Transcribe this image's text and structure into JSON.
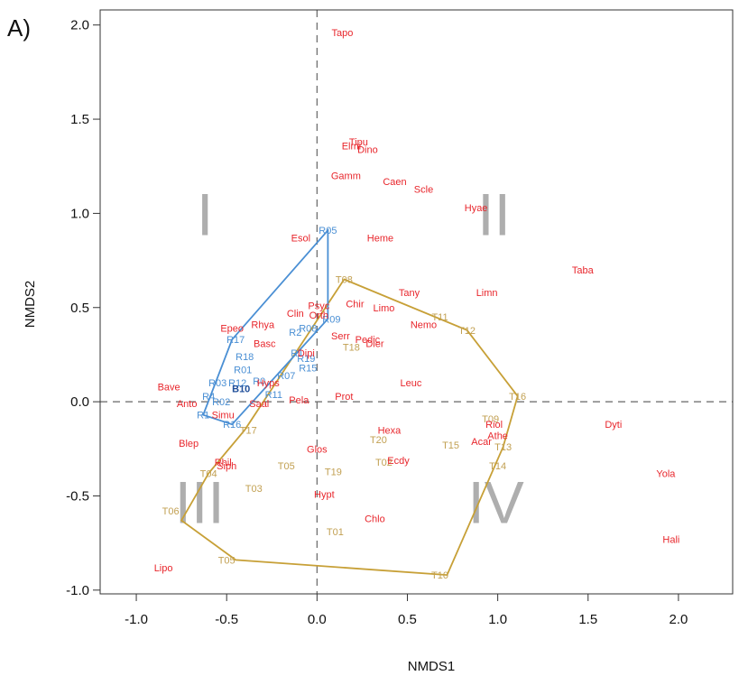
{
  "chart_data": {
    "type": "scatter",
    "panel_label": "A)",
    "xlabel": "NMDS1",
    "ylabel": "NMDS2",
    "xlim": [
      -1.2,
      2.3
    ],
    "ylim": [
      -1.02,
      2.08
    ],
    "x_ticks": [
      -1.0,
      -0.5,
      0.0,
      0.5,
      1.0,
      1.5,
      2.0
    ],
    "y_ticks": [
      -1.0,
      -0.5,
      0.0,
      0.5,
      1.0,
      1.5,
      2.0
    ],
    "x_tick_labels": [
      "-1.0",
      "-0.5",
      "0.0",
      "0.5",
      "1.0",
      "1.5",
      "2.0"
    ],
    "y_tick_labels": [
      "-1.0",
      "-0.5",
      "0.0",
      "0.5",
      "1.0",
      "1.5",
      "2.0"
    ],
    "reference_lines": {
      "x": 0.0,
      "y": 0.0,
      "style": "dashed"
    },
    "colors": {
      "taxa": "#e8262c",
      "river": "#4a8fd4",
      "river_bold": "#1f4e99",
      "temporary": "#c2a052",
      "hull_river": "#4a8fd4",
      "hull_temporary": "#c7a037",
      "quadrant": "#9a9a9a"
    },
    "quadrants": [
      {
        "label": "I",
        "x": -0.62,
        "y": 1.0
      },
      {
        "label": "II",
        "x": 0.98,
        "y": 1.0
      },
      {
        "label": "III",
        "x": -0.65,
        "y": -0.53
      },
      {
        "label": "IV",
        "x": 0.99,
        "y": -0.53
      }
    ],
    "taxa": [
      {
        "label": "Tapo",
        "x": 0.14,
        "y": 1.96
      },
      {
        "label": "Tipu",
        "x": 0.23,
        "y": 1.38
      },
      {
        "label": "Elmi",
        "x": 0.19,
        "y": 1.36
      },
      {
        "label": "Dino",
        "x": 0.28,
        "y": 1.34
      },
      {
        "label": "Gamm",
        "x": 0.16,
        "y": 1.2
      },
      {
        "label": "Caen",
        "x": 0.43,
        "y": 1.17
      },
      {
        "label": "Scle",
        "x": 0.59,
        "y": 1.13
      },
      {
        "label": "Hyae",
        "x": 0.88,
        "y": 1.03
      },
      {
        "label": "Esol",
        "x": -0.09,
        "y": 0.87
      },
      {
        "label": "Heme",
        "x": 0.35,
        "y": 0.87
      },
      {
        "label": "Taba",
        "x": 1.47,
        "y": 0.7
      },
      {
        "label": "Tany",
        "x": 0.51,
        "y": 0.58
      },
      {
        "label": "Limn",
        "x": 0.94,
        "y": 0.58
      },
      {
        "label": "Chir",
        "x": 0.21,
        "y": 0.52
      },
      {
        "label": "Limo",
        "x": 0.37,
        "y": 0.5
      },
      {
        "label": "Psyc",
        "x": 0.01,
        "y": 0.51
      },
      {
        "label": "Clin",
        "x": -0.12,
        "y": 0.47
      },
      {
        "label": "Orth",
        "x": 0.01,
        "y": 0.46
      },
      {
        "label": "Epeo",
        "x": -0.47,
        "y": 0.39
      },
      {
        "label": "Rhya",
        "x": -0.3,
        "y": 0.41
      },
      {
        "label": "Nemo",
        "x": 0.59,
        "y": 0.41
      },
      {
        "label": "Serr",
        "x": 0.13,
        "y": 0.35
      },
      {
        "label": "Pedic",
        "x": 0.28,
        "y": 0.33
      },
      {
        "label": "Dier",
        "x": 0.32,
        "y": 0.31
      },
      {
        "label": "Basc",
        "x": -0.29,
        "y": 0.31
      },
      {
        "label": "Dipi",
        "x": -0.06,
        "y": 0.26
      },
      {
        "label": "Hyps",
        "x": -0.27,
        "y": 0.1
      },
      {
        "label": "Leuc",
        "x": 0.52,
        "y": 0.1
      },
      {
        "label": "Bave",
        "x": -0.82,
        "y": 0.08
      },
      {
        "label": "Prot",
        "x": 0.15,
        "y": 0.03
      },
      {
        "label": "Pela",
        "x": -0.1,
        "y": 0.01
      },
      {
        "label": "Anto",
        "x": -0.72,
        "y": -0.01
      },
      {
        "label": "Saal",
        "x": -0.32,
        "y": -0.01
      },
      {
        "label": "Simu",
        "x": -0.52,
        "y": -0.07
      },
      {
        "label": "Riol",
        "x": 0.98,
        "y": -0.12
      },
      {
        "label": "Dyti",
        "x": 1.64,
        "y": -0.12
      },
      {
        "label": "Hexa",
        "x": 0.4,
        "y": -0.15
      },
      {
        "label": "Athe",
        "x": 1.0,
        "y": -0.18
      },
      {
        "label": "Acar",
        "x": 0.91,
        "y": -0.21
      },
      {
        "label": "Blep",
        "x": -0.71,
        "y": -0.22
      },
      {
        "label": "Glos",
        "x": 0.0,
        "y": -0.25
      },
      {
        "label": "Ecdy",
        "x": 0.45,
        "y": -0.31
      },
      {
        "label": "Rhil",
        "x": -0.52,
        "y": -0.32
      },
      {
        "label": "Siph",
        "x": -0.5,
        "y": -0.34
      },
      {
        "label": "Yola",
        "x": 1.93,
        "y": -0.38
      },
      {
        "label": "Hypt",
        "x": 0.04,
        "y": -0.49
      },
      {
        "label": "Chlo",
        "x": 0.32,
        "y": -0.62
      },
      {
        "label": "Hali",
        "x": 1.96,
        "y": -0.73
      },
      {
        "label": "Lipo",
        "x": -0.85,
        "y": -0.88
      }
    ],
    "river_sites": [
      {
        "label": "R05",
        "x": 0.06,
        "y": 0.91
      },
      {
        "label": "R09",
        "x": 0.08,
        "y": 0.44
      },
      {
        "label": "R08",
        "x": -0.05,
        "y": 0.39
      },
      {
        "label": "R2",
        "x": -0.12,
        "y": 0.37
      },
      {
        "label": "R17",
        "x": -0.45,
        "y": 0.33
      },
      {
        "label": "R18",
        "x": -0.4,
        "y": 0.24
      },
      {
        "label": "R1",
        "x": -0.11,
        "y": 0.26
      },
      {
        "label": "R19",
        "x": -0.06,
        "y": 0.23
      },
      {
        "label": "R01",
        "x": -0.41,
        "y": 0.17
      },
      {
        "label": "R15",
        "x": -0.05,
        "y": 0.18
      },
      {
        "label": "R07",
        "x": -0.17,
        "y": 0.14
      },
      {
        "label": "R0",
        "x": -0.32,
        "y": 0.11
      },
      {
        "label": "R03",
        "x": -0.55,
        "y": 0.1
      },
      {
        "label": "R12",
        "x": -0.44,
        "y": 0.1
      },
      {
        "label": "R11",
        "x": -0.24,
        "y": 0.04
      },
      {
        "label": "R4",
        "x": -0.6,
        "y": 0.03
      },
      {
        "label": "R02",
        "x": -0.53,
        "y": 0.0
      },
      {
        "label": "R1",
        "x": -0.63,
        "y": -0.07
      },
      {
        "label": "R16",
        "x": -0.47,
        "y": -0.12
      }
    ],
    "river_highlight": {
      "label": "B10",
      "x": -0.42,
      "y": 0.07
    },
    "temporary_sites": [
      {
        "label": "T08",
        "x": 0.15,
        "y": 0.65
      },
      {
        "label": "T11",
        "x": 0.68,
        "y": 0.45
      },
      {
        "label": "T12",
        "x": 0.83,
        "y": 0.38
      },
      {
        "label": "T18",
        "x": 0.19,
        "y": 0.29
      },
      {
        "label": "T16",
        "x": 1.11,
        "y": 0.03
      },
      {
        "label": "T09",
        "x": 0.96,
        "y": -0.09
      },
      {
        "label": "T17",
        "x": -0.38,
        "y": -0.15
      },
      {
        "label": "T20",
        "x": 0.34,
        "y": -0.2
      },
      {
        "label": "T15",
        "x": 0.74,
        "y": -0.23
      },
      {
        "label": "T13",
        "x": 1.03,
        "y": -0.24
      },
      {
        "label": "T02",
        "x": 0.37,
        "y": -0.32
      },
      {
        "label": "T14",
        "x": 1.0,
        "y": -0.34
      },
      {
        "label": "T04",
        "x": -0.6,
        "y": -0.38
      },
      {
        "label": "T05",
        "x": -0.17,
        "y": -0.34
      },
      {
        "label": "T19",
        "x": 0.09,
        "y": -0.37
      },
      {
        "label": "T03",
        "x": -0.35,
        "y": -0.46
      },
      {
        "label": "T06",
        "x": -0.81,
        "y": -0.58
      },
      {
        "label": "T01",
        "x": 0.1,
        "y": -0.69
      },
      {
        "label": "T05",
        "x": -0.5,
        "y": -0.84
      },
      {
        "label": "T10",
        "x": 0.68,
        "y": -0.92
      }
    ],
    "hull_river": [
      [
        0.06,
        0.91
      ],
      [
        0.06,
        0.44
      ],
      [
        -0.47,
        -0.12
      ],
      [
        -0.63,
        -0.07
      ],
      [
        -0.47,
        0.33
      ]
    ],
    "hull_temporary": [
      [
        0.15,
        0.65
      ],
      [
        0.83,
        0.38
      ],
      [
        1.11,
        0.03
      ],
      [
        1.03,
        -0.24
      ],
      [
        0.72,
        -0.92
      ],
      [
        -0.45,
        -0.84
      ],
      [
        -0.75,
        -0.63
      ],
      [
        -0.6,
        -0.38
      ],
      [
        -0.4,
        -0.15
      ]
    ]
  }
}
